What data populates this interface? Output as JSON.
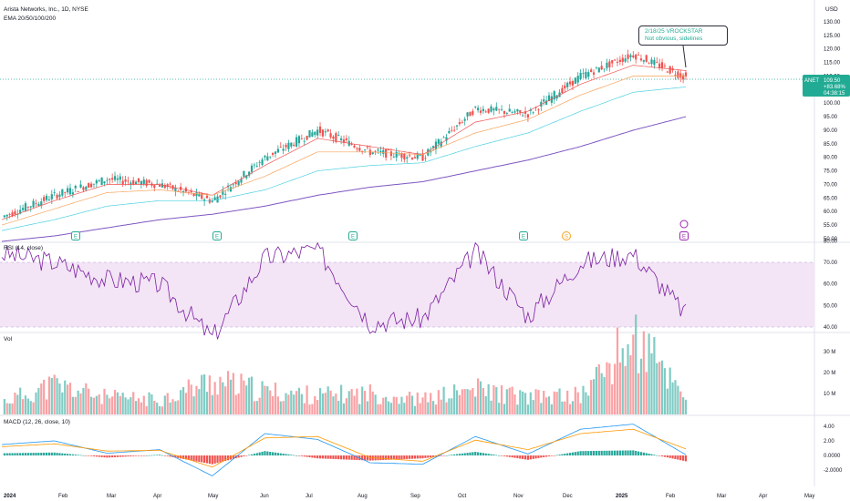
{
  "header": {
    "symbol_line": "Arista Networks, Inc., 1D, NYSE",
    "indicator_line": "EMA 20/50/100/200",
    "currency": "USD"
  },
  "price_tag": {
    "ticker": "ANET",
    "price": "109.50",
    "change": "+83.68%",
    "countdown": "04:38:15",
    "color": "#22ab94"
  },
  "callout": {
    "line1": "2/18/25 VROCKSTAR",
    "line2": "Not obvious, sidelines"
  },
  "events": {
    "earnings_label": "E",
    "dividend_label": "S",
    "earnings_color": "#22ab94",
    "dividend_color": "#f7a21b",
    "other_color": "#9c27b0"
  },
  "panes": {
    "rsi_title": "RSI (14, close)",
    "vol_title": "Vol",
    "macd_title": "MACD (12, 26, close, 10)"
  },
  "x_axis": [
    "2024",
    "Feb",
    "Mar",
    "Apr",
    "May",
    "Jun",
    "Jul",
    "Aug",
    "Sep",
    "Oct",
    "Nov",
    "Dec",
    "2025",
    "Feb",
    "Mar",
    "Apr",
    "May"
  ],
  "price_axis": [
    "130.00",
    "125.00",
    "120.00",
    "115.00",
    "110.00",
    "105.00",
    "100.00",
    "95.00",
    "90.00",
    "85.00",
    "80.00",
    "75.00",
    "70.00",
    "65.00",
    "60.00",
    "55.00",
    "50.00"
  ],
  "rsi_axis": [
    "80.00",
    "70.00",
    "60.00",
    "50.00",
    "40.00"
  ],
  "vol_axis": [
    "30 M",
    "20 M",
    "10 M"
  ],
  "macd_axis": [
    "4.00",
    "2.00",
    "0.0000",
    "-2.0000"
  ],
  "colors": {
    "up": "#26a69a",
    "down": "#ef5350",
    "ema20": "#ef5350",
    "ema50": "#f7a35c",
    "ema100": "#4dd0e1",
    "ema200": "#7e57c2",
    "rsi_line": "#7b1fa2",
    "rsi_band": "#f3e5f5",
    "macd_line": "#2196f3",
    "signal_line": "#ff9800"
  },
  "chart_data": [
    {
      "type": "line",
      "title": "Arista Networks, Inc., 1D, NYSE",
      "ylabel": "USD",
      "x": [
        "2024-01",
        "2024-02",
        "2024-03",
        "2024-04",
        "2024-05",
        "2024-06",
        "2024-07",
        "2024-08",
        "2024-09",
        "2024-10",
        "2024-11",
        "2024-12",
        "2025-01",
        "2025-02"
      ],
      "ylim": [
        50,
        132
      ],
      "series": [
        {
          "name": "ANET close (approx)",
          "values": [
            58,
            66,
            72,
            70,
            64,
            80,
            90,
            82,
            80,
            98,
            96,
            110,
            118,
            109.5
          ]
        },
        {
          "name": "EMA 20",
          "values": [
            57,
            64,
            70,
            70,
            66,
            77,
            87,
            84,
            81,
            93,
            97,
            107,
            114,
            112
          ]
        },
        {
          "name": "EMA 50",
          "values": [
            55,
            61,
            67,
            68,
            66,
            73,
            82,
            82,
            81,
            89,
            94,
            103,
            110,
            110
          ]
        },
        {
          "name": "EMA 100",
          "values": [
            53,
            57,
            62,
            64,
            64,
            68,
            75,
            77,
            78,
            84,
            89,
            97,
            104,
            106
          ]
        },
        {
          "name": "EMA 200",
          "values": [
            49,
            51,
            54,
            57,
            59,
            62,
            66,
            69,
            71,
            75,
            79,
            84,
            90,
            95
          ]
        }
      ]
    },
    {
      "type": "line",
      "title": "RSI (14, close)",
      "x": [
        "2024-01",
        "2024-02",
        "2024-03",
        "2024-04",
        "2024-05",
        "2024-06",
        "2024-07",
        "2024-08",
        "2024-09",
        "2024-10",
        "2024-11",
        "2024-12",
        "2025-01",
        "2025-02"
      ],
      "ylim": [
        30,
        80
      ],
      "series": [
        {
          "name": "RSI",
          "values": [
            74,
            70,
            62,
            60,
            35,
            72,
            76,
            42,
            44,
            75,
            45,
            70,
            74,
            46
          ]
        }
      ]
    },
    {
      "type": "bar",
      "title": "Vol",
      "x": [
        "2024-01",
        "2024-02",
        "2024-03",
        "2024-04",
        "2024-05",
        "2024-06",
        "2024-07",
        "2024-08",
        "2024-09",
        "2024-10",
        "2024-11",
        "2024-12",
        "2025-01",
        "2025-02"
      ],
      "series": [
        {
          "name": "Volume (M)",
          "values": [
            6,
            14,
            8,
            7,
            16,
            11,
            9,
            10,
            7,
            12,
            8,
            9,
            36,
            10
          ]
        }
      ]
    },
    {
      "type": "line",
      "title": "MACD (12, 26, close, 10)",
      "x": [
        "2024-01",
        "2024-02",
        "2024-03",
        "2024-04",
        "2024-05",
        "2024-06",
        "2024-07",
        "2024-08",
        "2024-09",
        "2024-10",
        "2024-11",
        "2024-12",
        "2025-01",
        "2025-02"
      ],
      "ylim": [
        -3,
        5
      ],
      "series": [
        {
          "name": "MACD",
          "values": [
            1.5,
            2.0,
            0.3,
            0.8,
            -2.8,
            3.0,
            2.2,
            -1.0,
            -1.2,
            2.6,
            0.2,
            3.6,
            4.3,
            0.1
          ]
        },
        {
          "name": "Signal",
          "values": [
            1.2,
            1.6,
            0.6,
            0.7,
            -1.6,
            2.4,
            2.6,
            -0.3,
            -0.8,
            2.1,
            0.8,
            3.0,
            3.6,
            0.9
          ]
        }
      ]
    }
  ]
}
